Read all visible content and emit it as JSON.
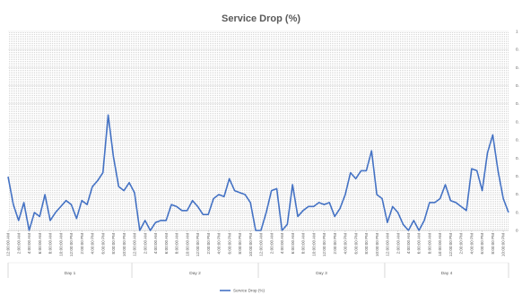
{
  "chart_data": {
    "type": "line",
    "title": "Service Drop (%)",
    "xlabel": "",
    "ylabel": "",
    "y_tick_labels": [
      "1",
      "0.",
      "0.",
      "0.",
      "0.",
      "0.",
      "0.",
      "0.",
      "0.",
      "0.",
      "0.",
      "0"
    ],
    "y_tick_side": "right",
    "ylim": [
      0,
      1
    ],
    "grid": true,
    "legend_placement": "bottom",
    "x_tick_labels": [
      "12:00:00 AM",
      "2:00:00 AM",
      "4:00:00 AM",
      "6:00:00 AM",
      "8:00:00 AM",
      "10:00:00 AM",
      "12:00:00 PM",
      "2:00:00 PM",
      "4:00:00 PM",
      "6:00:00 PM",
      "8:00:00 PM",
      "10:00:00 PM",
      "12:00:00 AM",
      "2:00:00 AM",
      "4:00:00 AM",
      "6:00:00 AM",
      "8:00:00 AM",
      "10:00:00 AM",
      "12:00:00 PM",
      "2:00:00 PM",
      "4:00:00 PM",
      "6:00:00 PM",
      "8:00:00 PM",
      "10:00:00 PM",
      "12:00:00 AM",
      "2:00:00 AM",
      "4:00:00 AM",
      "6:00:00 AM",
      "8:00:00 AM",
      "10:00:00 AM",
      "12:00:00 PM",
      "2:00:00 PM",
      "4:00:00 PM",
      "6:00:00 PM",
      "8:00:00 PM",
      "10:00:00 PM",
      "12:00:00 AM",
      "2:00:00 AM",
      "4:00:00 AM",
      "6:00:00 AM",
      "8:00:00 AM",
      "10:00:00 AM",
      "12:00:00 PM",
      "2:00:00 PM",
      "4:00:00 PM",
      "6:00:00 PM",
      "8:00:00 PM",
      "10:00:00 PM"
    ],
    "groups": [
      {
        "label": "Day 1",
        "start": 0,
        "count": 24
      },
      {
        "label": "Day 2",
        "start": 24,
        "count": 24
      },
      {
        "label": "Day 3",
        "start": 48,
        "count": 24
      },
      {
        "label": "Day 4",
        "start": 72,
        "count": 24
      }
    ],
    "series": [
      {
        "name": "Service Drop (%)",
        "color": "#4472c4",
        "values": [
          0.27,
          0.13,
          0.05,
          0.14,
          0.0,
          0.09,
          0.07,
          0.18,
          0.05,
          0.09,
          0.12,
          0.15,
          0.13,
          0.06,
          0.15,
          0.13,
          0.22,
          0.25,
          0.29,
          0.58,
          0.37,
          0.22,
          0.2,
          0.24,
          0.19,
          0.0,
          0.05,
          0.0,
          0.04,
          0.05,
          0.05,
          0.13,
          0.12,
          0.1,
          0.1,
          0.15,
          0.12,
          0.08,
          0.08,
          0.16,
          0.18,
          0.17,
          0.26,
          0.2,
          0.19,
          0.18,
          0.14,
          0.0,
          0.0,
          0.09,
          0.2,
          0.21,
          0.0,
          0.03,
          0.23,
          0.07,
          0.1,
          0.12,
          0.12,
          0.14,
          0.13,
          0.14,
          0.07,
          0.11,
          0.18,
          0.29,
          0.26,
          0.3,
          0.3,
          0.4,
          0.18,
          0.16,
          0.04,
          0.12,
          0.09,
          0.03,
          0.0,
          0.05,
          0.0,
          0.05,
          0.14,
          0.14,
          0.16,
          0.23,
          0.15,
          0.14,
          0.12,
          0.1,
          0.31,
          0.3,
          0.2,
          0.39,
          0.48,
          0.3,
          0.16,
          0.09
        ]
      }
    ]
  }
}
